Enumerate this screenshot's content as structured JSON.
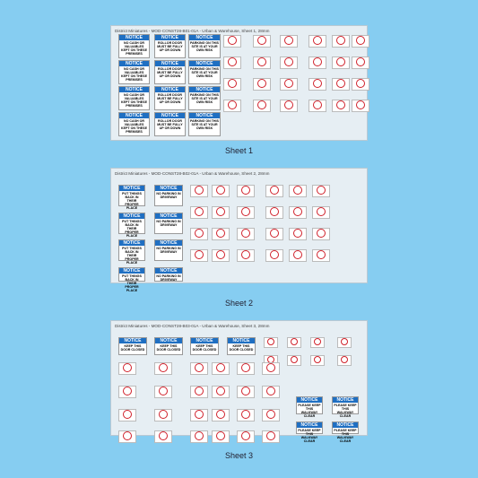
{
  "sheets": [
    {
      "header": "District Miniatures - MOD-CONST28-B01-01A - Urban & Warehouse, Sheet 1, 28mm",
      "caption": "Sheet 1",
      "notices": [
        {
          "title": "NOTICE",
          "body": "NO CASH OR VALUABLES KEPT ON THESE PREMISES"
        },
        {
          "title": "NOTICE",
          "body": "NO CASH OR VALUABLES KEPT ON THESE PREMISES"
        },
        {
          "title": "NOTICE",
          "body": "NO CASH OR VALUABLES KEPT ON THESE PREMISES"
        },
        {
          "title": "NOTICE",
          "body": "NO CASH OR VALUABLES KEPT ON THESE PREMISES"
        },
        {
          "title": "NOTICE",
          "body": "ROLLOR DOOR MUST BE FULLY UP OR DOWN"
        },
        {
          "title": "NOTICE",
          "body": "ROLLOR DOOR MUST BE FULLY UP OR DOWN"
        },
        {
          "title": "NOTICE",
          "body": "ROLLOR DOOR MUST BE FULLY UP OR DOWN"
        },
        {
          "title": "NOTICE",
          "body": "ROLLOR DOOR MUST BE FULLY UP OR DOWN"
        },
        {
          "title": "NOTICE",
          "body": "PARKING ON THIS SITE IS AT YOUR OWN RISK"
        },
        {
          "title": "NOTICE",
          "body": "PARKING ON THIS SITE IS AT YOUR OWN RISK"
        },
        {
          "title": "NOTICE",
          "body": "PARKING ON THIS SITE IS AT YOUR OWN RISK"
        },
        {
          "title": "NOTICE",
          "body": "PARKING ON THIS SITE IS AT YOUR OWN RISK"
        }
      ]
    },
    {
      "header": "District Miniatures - MOD-CONST28-B02-01A - Urban & Warehouse, Sheet 2, 28mm",
      "caption": "Sheet 2",
      "notices": [
        {
          "title": "NOTICE",
          "body": "PUT THINGS BACK IN THEIR PROPER PLACE"
        },
        {
          "title": "NOTICE",
          "body": "PUT THINGS BACK IN THEIR PROPER PLACE"
        },
        {
          "title": "NOTICE",
          "body": "PUT THINGS BACK IN THEIR PROPER PLACE"
        },
        {
          "title": "NOTICE",
          "body": "PUT THINGS BACK IN THEIR PROPER PLACE"
        },
        {
          "title": "NOTICE",
          "body": "NO PARKING IN DRIVEWAY"
        },
        {
          "title": "NOTICE",
          "body": "NO PARKING IN DRIVEWAY"
        },
        {
          "title": "NOTICE",
          "body": "NO PARKING IN DRIVEWAY"
        },
        {
          "title": "NOTICE",
          "body": "NO PARKING IN DRIVEWAY"
        }
      ]
    },
    {
      "header": "District Miniatures - MOD-CONST28-B03-01A - Urban & Warehouse, Sheet 3, 28mm",
      "caption": "Sheet 3",
      "notices": [
        {
          "title": "NOTICE",
          "body": "KEEP THIS DOOR CLOSED"
        },
        {
          "title": "NOTICE",
          "body": "KEEP THIS DOOR CLOSED"
        },
        {
          "title": "NOTICE",
          "body": "KEEP THIS DOOR CLOSED"
        },
        {
          "title": "NOTICE",
          "body": "KEEP THIS DOOR CLOSED"
        },
        {
          "title": "NOTICE",
          "body": "PLEASE KEEP THIS WALKWAY CLEAR"
        },
        {
          "title": "NOTICE",
          "body": "PLEASE KEEP THIS WALKWAY CLEAR"
        },
        {
          "title": "NOTICE",
          "body": "PLEASE KEEP THIS WALKWAY CLEAR"
        },
        {
          "title": "NOTICE",
          "body": "PLEASE KEEP THIS WALKWAY CLEAR"
        }
      ]
    }
  ]
}
